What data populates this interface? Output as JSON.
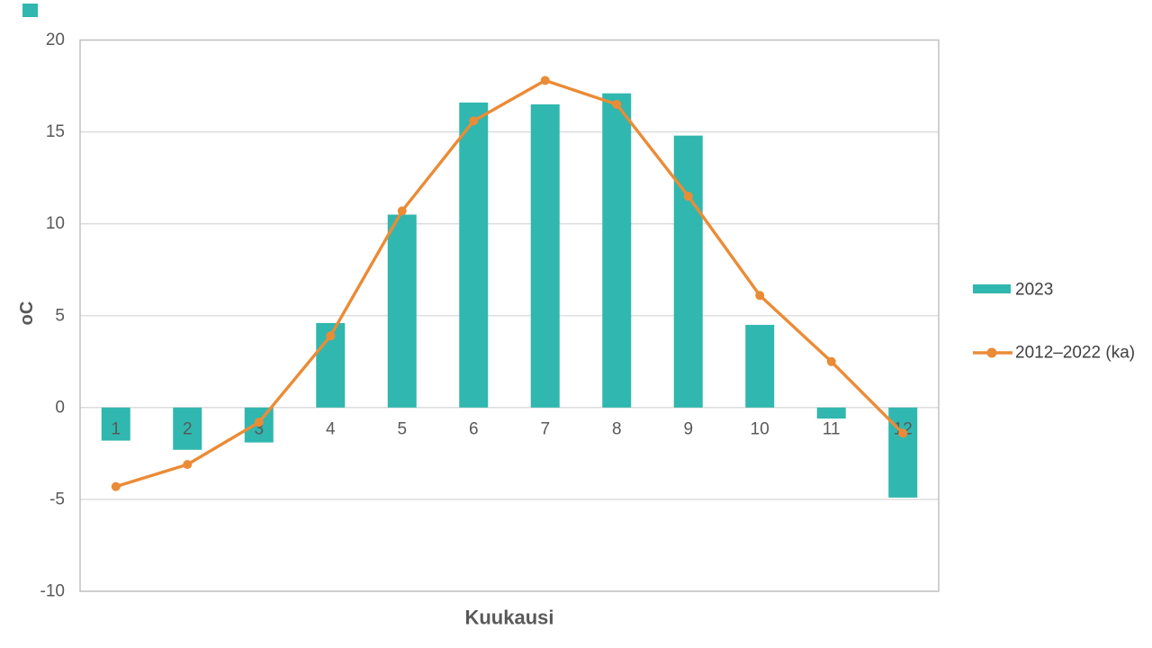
{
  "colors": {
    "bar": "#30B7AF",
    "line": "#EB8B36",
    "grid": "#D9D9D9",
    "border": "#BDBDBD",
    "text": "#595959"
  },
  "stray_mark": {
    "present": true,
    "color": "#30B7AF"
  },
  "legend": {
    "items": [
      {
        "label": "2023",
        "type": "bar-swatch"
      },
      {
        "label": "2012–2022 (ka)",
        "type": "line-marker-swatch"
      }
    ],
    "position": "right"
  },
  "chart_data": {
    "type": "combo",
    "title": "",
    "xlabel": "Kuukausi",
    "ylabel": "oC",
    "categories": [
      "1",
      "2",
      "3",
      "4",
      "5",
      "6",
      "7",
      "8",
      "9",
      "10",
      "11",
      "12"
    ],
    "series": [
      {
        "name": "2023",
        "type": "bar",
        "color": "#30B7AF",
        "values": [
          -1.8,
          -2.3,
          -1.9,
          4.6,
          10.5,
          16.6,
          16.5,
          17.1,
          14.8,
          4.5,
          -0.6,
          -4.9
        ]
      },
      {
        "name": "2012–2022 (ka)",
        "type": "line",
        "color": "#EB8B36",
        "values": [
          -4.3,
          -3.1,
          -0.8,
          3.9,
          10.7,
          15.6,
          17.8,
          16.5,
          11.5,
          6.1,
          2.5,
          -1.4
        ]
      }
    ],
    "yticks": [
      20,
      15,
      10,
      5,
      0,
      -5,
      -10
    ],
    "ylim": [
      -10,
      20
    ],
    "grid": true,
    "legend_position": "right"
  }
}
